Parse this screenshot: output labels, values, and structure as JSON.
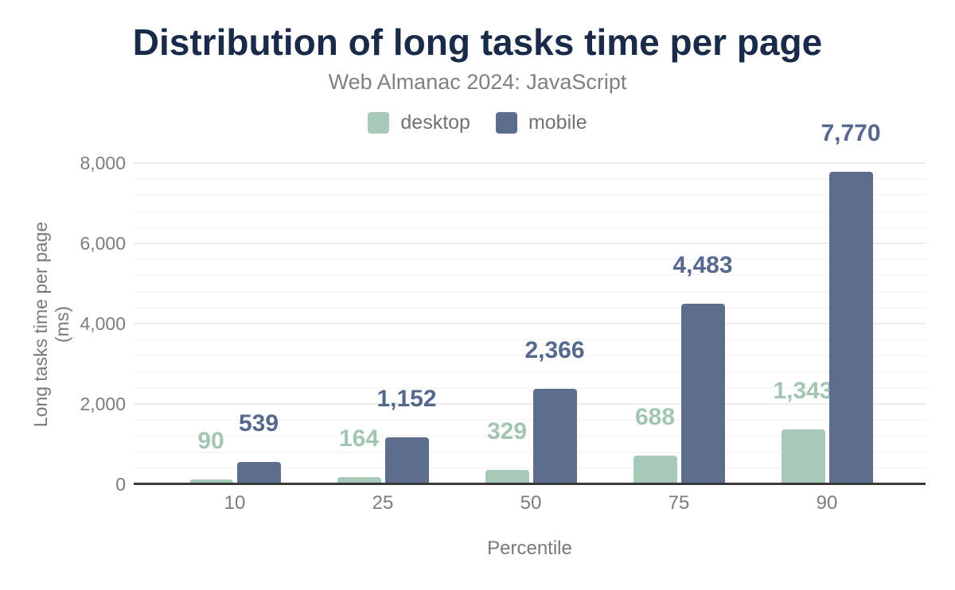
{
  "chart_data": {
    "type": "bar",
    "title": "Distribution of long tasks time per page",
    "subtitle": "Web Almanac 2024: JavaScript",
    "xlabel": "Percentile",
    "ylabel": "Long tasks time per page (ms)",
    "categories": [
      "10",
      "25",
      "50",
      "75",
      "90"
    ],
    "series": [
      {
        "name": "desktop",
        "color": "#a7c9b8",
        "label_color": "#a2c6b1",
        "values": [
          90,
          164,
          329,
          688,
          1343
        ],
        "value_labels": [
          "90",
          "164",
          "329",
          "688",
          "1,343"
        ]
      },
      {
        "name": "mobile",
        "color": "#5d6e8c",
        "label_color": "#56698d",
        "values": [
          539,
          1152,
          2366,
          4483,
          7770
        ],
        "value_labels": [
          "539",
          "1,152",
          "2,366",
          "4,483",
          "7,770"
        ]
      }
    ],
    "ylim": [
      0,
      8000
    ],
    "ytick_interval": 2000,
    "minor_tick_interval": 400,
    "ytick_labels": [
      "0",
      "2,000",
      "4,000",
      "6,000",
      "8,000"
    ],
    "grid": "on",
    "legend_position": "top-center"
  },
  "colors": {
    "title": "#1a2b49",
    "subtitle": "#7d8185",
    "axis_text": "#797d82",
    "axis_line": "#37393c",
    "major_grid": "#ececec",
    "minor_grid": "#f7f7f7",
    "background": "#ffffff"
  }
}
